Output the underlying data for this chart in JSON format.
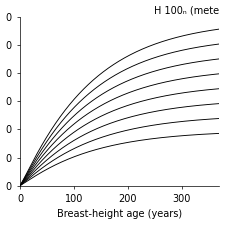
{
  "title": "H 100ₙ (mete",
  "xlabel": "Breast-height age (years)",
  "xmin": 0,
  "xmax": 370,
  "ymin": 0,
  "ymax": 1.0,
  "site_indices": [
    14,
    18,
    22,
    26,
    30,
    34,
    38,
    42
  ],
  "age_max": 370,
  "background_color": "#ffffff",
  "curve_color": "#000000",
  "xticks": [
    0,
    100,
    200,
    300
  ],
  "ytick_labels": [
    "0",
    "0",
    "0",
    "0",
    "0",
    "0",
    "0"
  ],
  "b2": 0.008,
  "b3": 1.1,
  "ref_age": 100.0,
  "linewidth": 0.65,
  "title_fontsize": 7,
  "axis_fontsize": 7,
  "figsize": [
    2.25,
    2.25
  ],
  "dpi": 100
}
